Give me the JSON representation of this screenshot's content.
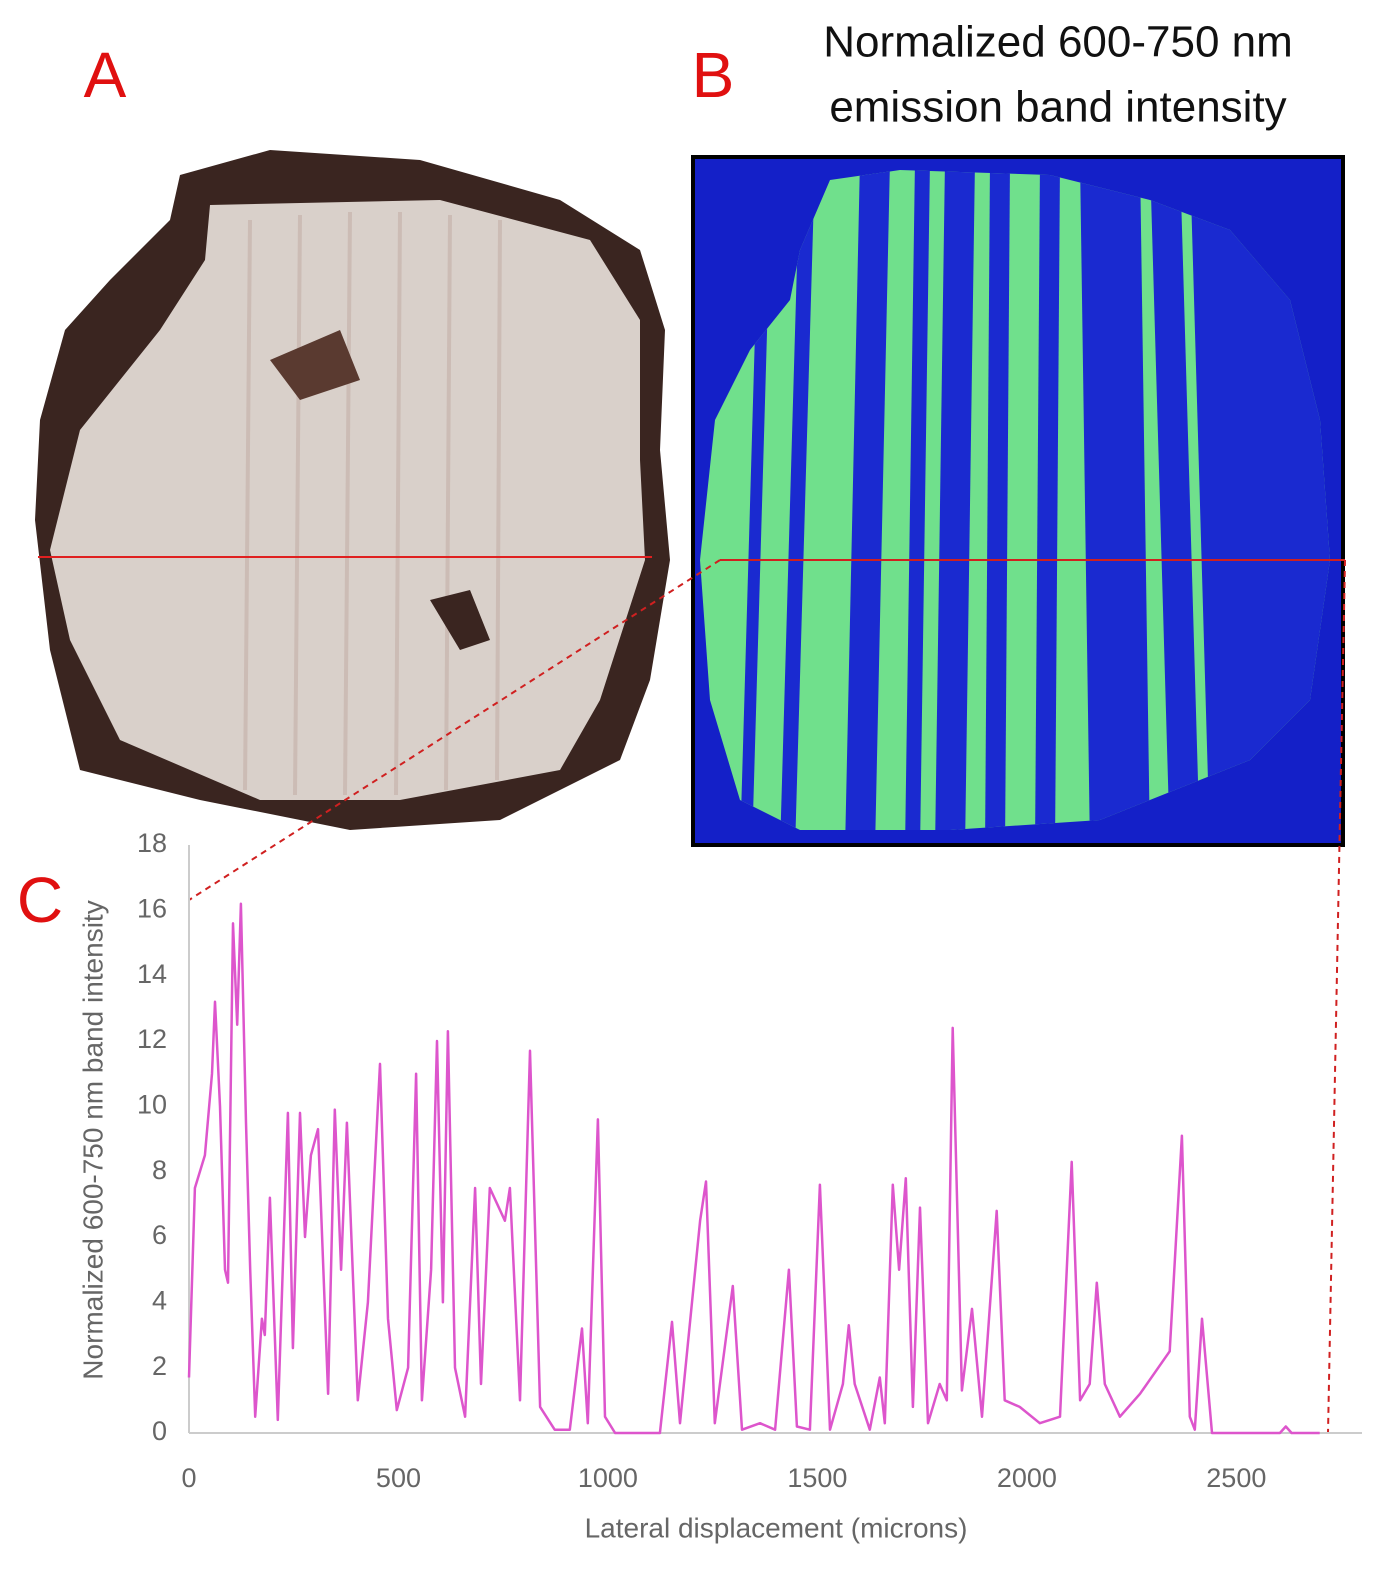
{
  "chart_data": {
    "type": "line",
    "panel_labels": [
      "A",
      "B",
      "C"
    ],
    "title_lines": [
      "Normalized 600-750 nm",
      "emission band intensity"
    ],
    "x_label": "Lateral displacement (microns)",
    "y_label": "Normalized 600-750 nm band  intensity",
    "xlim": [
      0,
      2800
    ],
    "xticks": [
      0,
      500,
      1000,
      1500,
      2000,
      2500
    ],
    "ylim": [
      0,
      18
    ],
    "yticks": [
      0,
      2,
      4,
      6,
      8,
      10,
      12,
      14,
      16,
      18
    ],
    "grid": false,
    "series": [
      {
        "name": "Normalized 600-750 nm band intensity",
        "color": "#dd55cc",
        "x": [
          0,
          14,
          38,
          55,
          62,
          74,
          86,
          93,
          105,
          115,
          124,
          136,
          146,
          158,
          174,
          181,
          193,
          212,
          236,
          248,
          265,
          277,
          291,
          308,
          332,
          348,
          363,
          377,
          403,
          427,
          456,
          475,
          496,
          523,
          542,
          556,
          578,
          592,
          606,
          618,
          635,
          659,
          683,
          697,
          718,
          754,
          766,
          790,
          814,
          838,
          873,
          909,
          938,
          952,
          976,
          993,
          1017,
          1124,
          1153,
          1172,
          1220,
          1234,
          1255,
          1298,
          1320,
          1363,
          1399,
          1432,
          1451,
          1482,
          1506,
          1530,
          1561,
          1575,
          1589,
          1625,
          1649,
          1661,
          1680,
          1695,
          1711,
          1728,
          1745,
          1764,
          1792,
          1809,
          1823,
          1845,
          1869,
          1893,
          1928,
          1947,
          1983,
          2031,
          2079,
          2107,
          2127,
          2150,
          2167,
          2186,
          2222,
          2270,
          2341,
          2370,
          2389,
          2401,
          2418,
          2442,
          2604,
          2618,
          2632,
          2699
        ],
        "values": [
          1.7,
          7.5,
          8.5,
          11,
          13.2,
          10,
          5,
          4.6,
          15.6,
          12.5,
          16.2,
          9.5,
          5,
          0.5,
          3.5,
          3,
          7.2,
          0.4,
          9.8,
          2.6,
          9.8,
          6,
          8.5,
          9.3,
          1.2,
          9.9,
          5,
          9.5,
          1,
          4,
          11.3,
          3.5,
          0.7,
          2,
          11,
          1,
          5,
          12,
          4,
          12.3,
          2,
          0.5,
          7.5,
          1.5,
          7.5,
          6.5,
          7.5,
          1,
          11.7,
          0.8,
          0.1,
          0.1,
          3.2,
          0.3,
          9.6,
          0.5,
          0,
          0,
          3.4,
          0.3,
          6.5,
          7.7,
          0.3,
          4.5,
          0.1,
          0.3,
          0.1,
          5,
          0.2,
          0.1,
          7.6,
          0.1,
          1.5,
          3.3,
          1.5,
          0.1,
          1.7,
          0.3,
          7.6,
          5,
          7.8,
          0.8,
          6.9,
          0.3,
          1.5,
          1,
          12.4,
          1.3,
          3.8,
          0.5,
          6.8,
          1,
          0.8,
          0.3,
          0.5,
          8.3,
          1,
          1.5,
          4.6,
          1.5,
          0.5,
          1.2,
          2.5,
          9.1,
          0.5,
          0.1,
          3.5,
          0,
          0,
          0.2,
          0,
          0
        ]
      }
    ]
  }
}
